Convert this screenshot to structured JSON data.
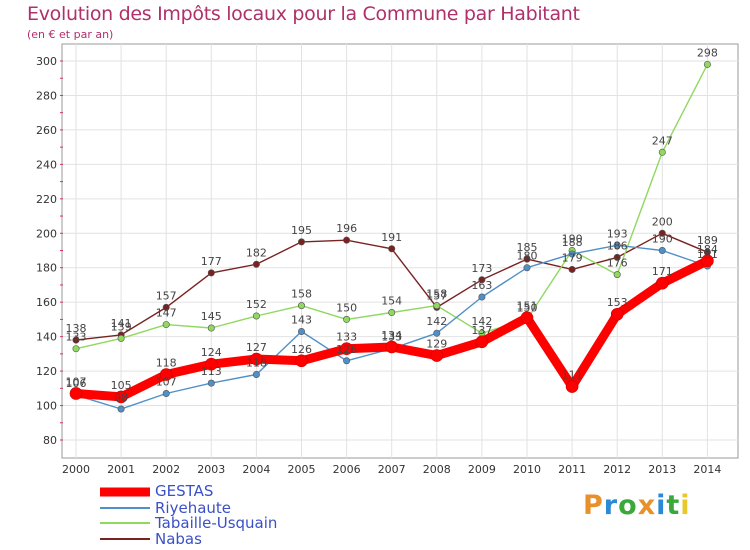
{
  "header": {
    "title": "Evolution des Impôts locaux pour la Commune par Habitant",
    "subtitle": "(en € et par an)"
  },
  "logo": {
    "text": "Proxiti",
    "colors": [
      "#e8902a",
      "#2a8ad8",
      "#3aa83a",
      "#e8902a",
      "#2a8ad8",
      "#3aa83a",
      "#e8c82a"
    ]
  },
  "chart_data": {
    "type": "line",
    "title": "Evolution des Impôts locaux pour la Commune par Habitant",
    "subtitle": "(en € et par an)",
    "xlabel": "",
    "ylabel": "",
    "x": [
      "2000",
      "2001",
      "2002",
      "2003",
      "2004",
      "2005",
      "2006",
      "2007",
      "2008",
      "2009",
      "2010",
      "2011",
      "2012",
      "2013",
      "2014"
    ],
    "ylim": [
      80,
      300
    ],
    "yticks": [
      80,
      100,
      120,
      140,
      160,
      180,
      200,
      220,
      240,
      260,
      280,
      300
    ],
    "grid": true,
    "legend": "bottom-left",
    "series": [
      {
        "name": "GESTAS",
        "color": "#ff0000",
        "values": [
          107,
          105,
          118,
          124,
          127,
          126,
          133,
          134,
          129,
          137,
          151,
          111,
          153,
          171,
          184
        ]
      },
      {
        "name": "Riyehaute",
        "color": "#5090c8",
        "values": [
          106,
          98,
          107,
          113,
          118,
          143,
          126,
          133,
          142,
          163,
          180,
          188,
          193,
          190,
          181
        ]
      },
      {
        "name": "Tabaille-Usquain",
        "color": "#90d860",
        "values": [
          133,
          139,
          147,
          145,
          152,
          158,
          150,
          154,
          158,
          142,
          150,
          190,
          176,
          247,
          298
        ]
      },
      {
        "name": "Nabas",
        "color": "#7a2222",
        "values": [
          138,
          141,
          157,
          177,
          182,
          195,
          196,
          191,
          157,
          173,
          185,
          179,
          186,
          200,
          189
        ]
      }
    ]
  }
}
